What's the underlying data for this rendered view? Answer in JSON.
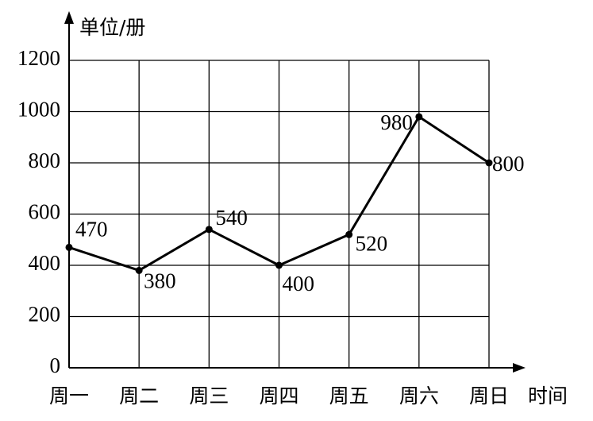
{
  "chart_data": {
    "type": "line",
    "y_label": "单位/册",
    "x_label": "时间",
    "categories": [
      "周一",
      "周二",
      "周三",
      "周四",
      "周五",
      "周六",
      "周日"
    ],
    "values": [
      470,
      380,
      540,
      400,
      520,
      980,
      800
    ],
    "color": "#000000",
    "ylim": [
      0,
      1200
    ],
    "yticks": [
      0,
      200,
      400,
      600,
      800,
      1000,
      1200
    ],
    "grid": true
  }
}
